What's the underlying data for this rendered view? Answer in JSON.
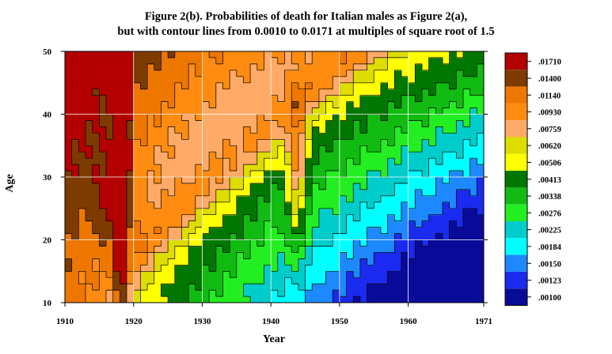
{
  "chart_data": {
    "type": "heatmap",
    "title_line1": "Figure 2(b). Probabilities of death for Italian males as Figure 2(a),",
    "title_line2": "but with contour lines from 0.0010 to 0.0171 at multiples of square root of 1.5",
    "xlabel": "Year",
    "ylabel": "Age",
    "xlim": [
      1910,
      1971
    ],
    "ylim": [
      10,
      50
    ],
    "x_ticks": [
      "1910",
      "1920",
      "1930",
      "1940",
      "1950",
      "1960",
      "1971"
    ],
    "x_tick_values": [
      1910,
      1920,
      1930,
      1940,
      1950,
      1960,
      1971
    ],
    "y_ticks": [
      "10",
      "20",
      "30",
      "40",
      "50"
    ],
    "y_tick_values": [
      10,
      20,
      30,
      40,
      50
    ],
    "grid": true,
    "legend_position": "right",
    "legend": [
      {
        "label": ".01710",
        "color": "#b30000"
      },
      {
        "label": ".01400",
        "color": "#7d3b00"
      },
      {
        "label": ".01140",
        "color": "#ee7700"
      },
      {
        "label": ".00930",
        "color": "#ff8c10"
      },
      {
        "label": ".00759",
        "color": "#ffaa66"
      },
      {
        "label": ".00620",
        "color": "#dddd00"
      },
      {
        "label": ".00506",
        "color": "#ffff00"
      },
      {
        "label": ".00413",
        "color": "#007700"
      },
      {
        "label": ".00338",
        "color": "#11bb11"
      },
      {
        "label": ".00276",
        "color": "#22ee22"
      },
      {
        "label": ".00225",
        "color": "#00cccc"
      },
      {
        "label": ".00184",
        "color": "#00ffff"
      },
      {
        "label": ".00150",
        "color": "#1e88ff"
      },
      {
        "label": ".00123",
        "color": "#1a2aee"
      },
      {
        "label": ".00100",
        "color": "#0a0a99"
      }
    ]
  }
}
